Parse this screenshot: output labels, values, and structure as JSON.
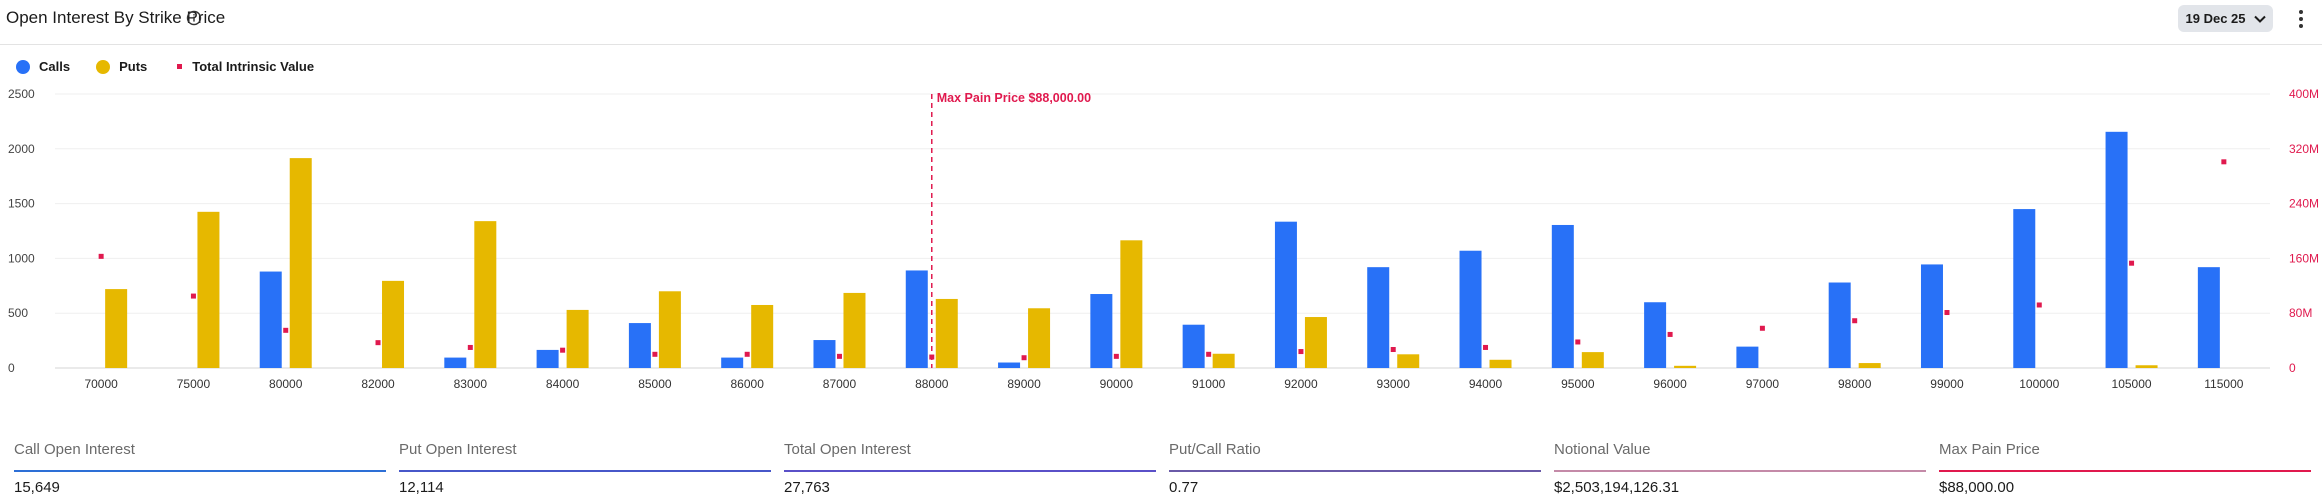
{
  "header": {
    "title": "Open Interest By Strike Price",
    "date_selector": "19 Dec 25"
  },
  "legend": [
    {
      "label": "Calls",
      "color": "#2871f7",
      "shape": "circle"
    },
    {
      "label": "Puts",
      "color": "#e6b800",
      "shape": "circle"
    },
    {
      "label": "Total Intrinsic Value",
      "color": "#e0194e",
      "shape": "square"
    }
  ],
  "chart_data": {
    "type": "bar",
    "categories": [
      "70000",
      "75000",
      "80000",
      "82000",
      "83000",
      "84000",
      "85000",
      "86000",
      "87000",
      "88000",
      "89000",
      "90000",
      "91000",
      "92000",
      "93000",
      "94000",
      "95000",
      "96000",
      "97000",
      "98000",
      "99000",
      "100000",
      "105000",
      "115000"
    ],
    "series": [
      {
        "name": "Calls",
        "axis": "left",
        "values": [
          0,
          0,
          880,
          0,
          95,
          165,
          410,
          95,
          255,
          890,
          50,
          675,
          395,
          1335,
          920,
          1070,
          1305,
          600,
          195,
          780,
          945,
          1450,
          2155,
          920
        ]
      },
      {
        "name": "Puts",
        "axis": "left",
        "values": [
          720,
          1425,
          1915,
          795,
          1340,
          530,
          700,
          575,
          685,
          630,
          545,
          1165,
          130,
          465,
          125,
          75,
          145,
          20,
          0,
          45,
          0,
          0,
          25,
          0
        ]
      },
      {
        "name": "Total Intrinsic Value",
        "axis": "right",
        "type": "scatter",
        "values": [
          163,
          105,
          55,
          37,
          30,
          26,
          20,
          20,
          17,
          16,
          15,
          17,
          20,
          24,
          27,
          30,
          38,
          49,
          58,
          69,
          81,
          92,
          153,
          301
        ]
      }
    ],
    "left_axis": {
      "ticks": [
        "0",
        "500",
        "1000",
        "1500",
        "2000",
        "2500"
      ],
      "ylim": [
        0,
        2500
      ]
    },
    "right_axis": {
      "ticks": [
        "0",
        "80M",
        "160M",
        "240M",
        "320M",
        "400M"
      ],
      "ylim": [
        0,
        400
      ]
    },
    "annotation": {
      "label": "Max Pain Price $88,000.00",
      "category": "88000"
    }
  },
  "stats": [
    {
      "label": "Call Open Interest",
      "value": "15,649",
      "color": "#2d6fd6"
    },
    {
      "label": "Put Open Interest",
      "value": "12,114",
      "color": "#4757c9"
    },
    {
      "label": "Total Open Interest",
      "value": "27,763",
      "color": "#5a50c8"
    },
    {
      "label": "Put/Call Ratio",
      "value": "0.77",
      "color": "#6a5aa8"
    },
    {
      "label": "Notional Value",
      "value": "$2,503,194,126.31",
      "color": "#c48aa8"
    },
    {
      "label": "Max Pain Price",
      "value": "$88,000.00",
      "color": "#e0194e"
    }
  ]
}
